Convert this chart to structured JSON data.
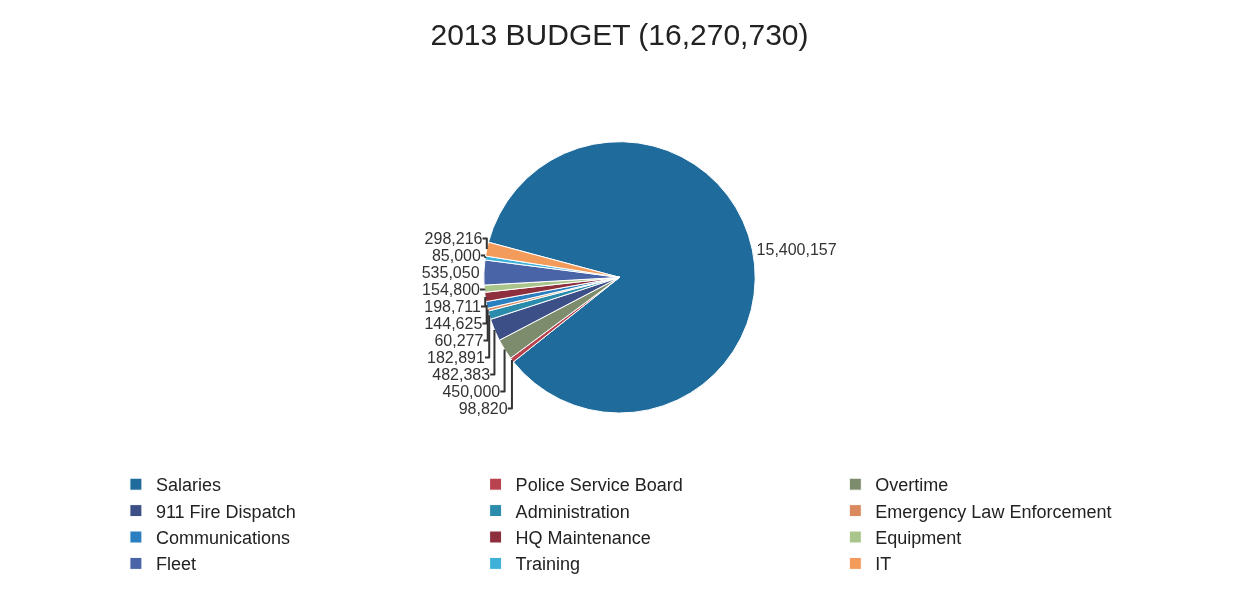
{
  "chart_data": {
    "type": "pie",
    "title": "2013 BUDGET (16,270,730)",
    "categories": [
      "Salaries",
      "Police Service Board",
      "Overtime",
      "911 Fire Dispatch",
      "Administration",
      "Emergency Law Enforcement",
      "Communications",
      "HQ Maintenance",
      "Equipment",
      "Fleet",
      "Training",
      "IT"
    ],
    "values": [
      15400157,
      98820,
      450000,
      482383,
      182891,
      60277,
      144625,
      198711,
      154800,
      535050,
      85000,
      298216
    ],
    "colors": [
      "#1f6b9c",
      "#b8434e",
      "#7d8c6c",
      "#3c4f86",
      "#2b8bab",
      "#d98a5e",
      "#2a7fc0",
      "#8e2f3d",
      "#a9c58c",
      "#4a64a8",
      "#3fb1d9",
      "#f39b5b"
    ],
    "value_labels": [
      "15,400,157",
      "98,820",
      "450,000",
      "482,383",
      "182,891",
      "60,277",
      "144,625",
      "198,711",
      "154,800",
      "535,050",
      "85,000",
      "298,216"
    ],
    "legend": "bottom"
  }
}
